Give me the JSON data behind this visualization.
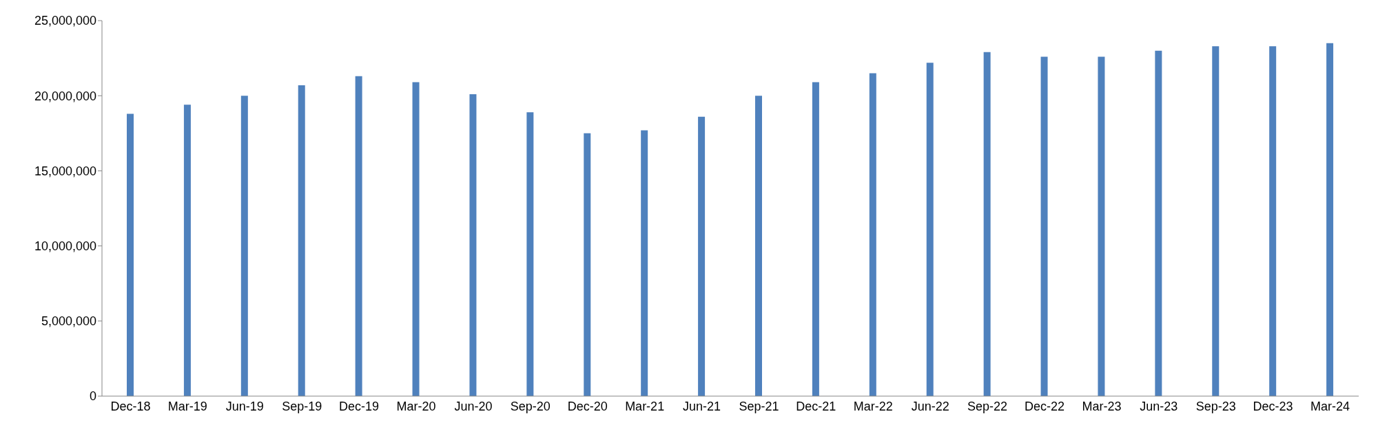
{
  "chart_data": {
    "type": "bar",
    "categories": [
      "Dec-18",
      "Mar-19",
      "Jun-19",
      "Sep-19",
      "Dec-19",
      "Mar-20",
      "Jun-20",
      "Sep-20",
      "Dec-20",
      "Mar-21",
      "Jun-21",
      "Sep-21",
      "Dec-21",
      "Mar-22",
      "Jun-22",
      "Sep-22",
      "Dec-22",
      "Mar-23",
      "Jun-23",
      "Sep-23",
      "Dec-23",
      "Mar-24"
    ],
    "values": [
      18800000,
      19400000,
      20000000,
      20700000,
      21300000,
      20900000,
      20100000,
      18900000,
      17500000,
      17700000,
      18600000,
      20000000,
      20900000,
      21500000,
      22200000,
      22900000,
      22600000,
      22600000,
      23000000,
      23300000,
      23300000,
      23500000
    ],
    "color": "#4f81bd",
    "ylim": [
      0,
      25000000
    ],
    "yticks": [
      0,
      {
        "value": 5000000,
        "label": "5,000,000"
      },
      {
        "value": 10000000,
        "label": "10,000,000"
      },
      {
        "value": 15000000,
        "label": "15,000,000"
      },
      {
        "value": 20000000,
        "label": "20,000,000"
      },
      {
        "value": 25000000,
        "label": "25,000,000"
      }
    ],
    "grid": false,
    "legend": false
  }
}
